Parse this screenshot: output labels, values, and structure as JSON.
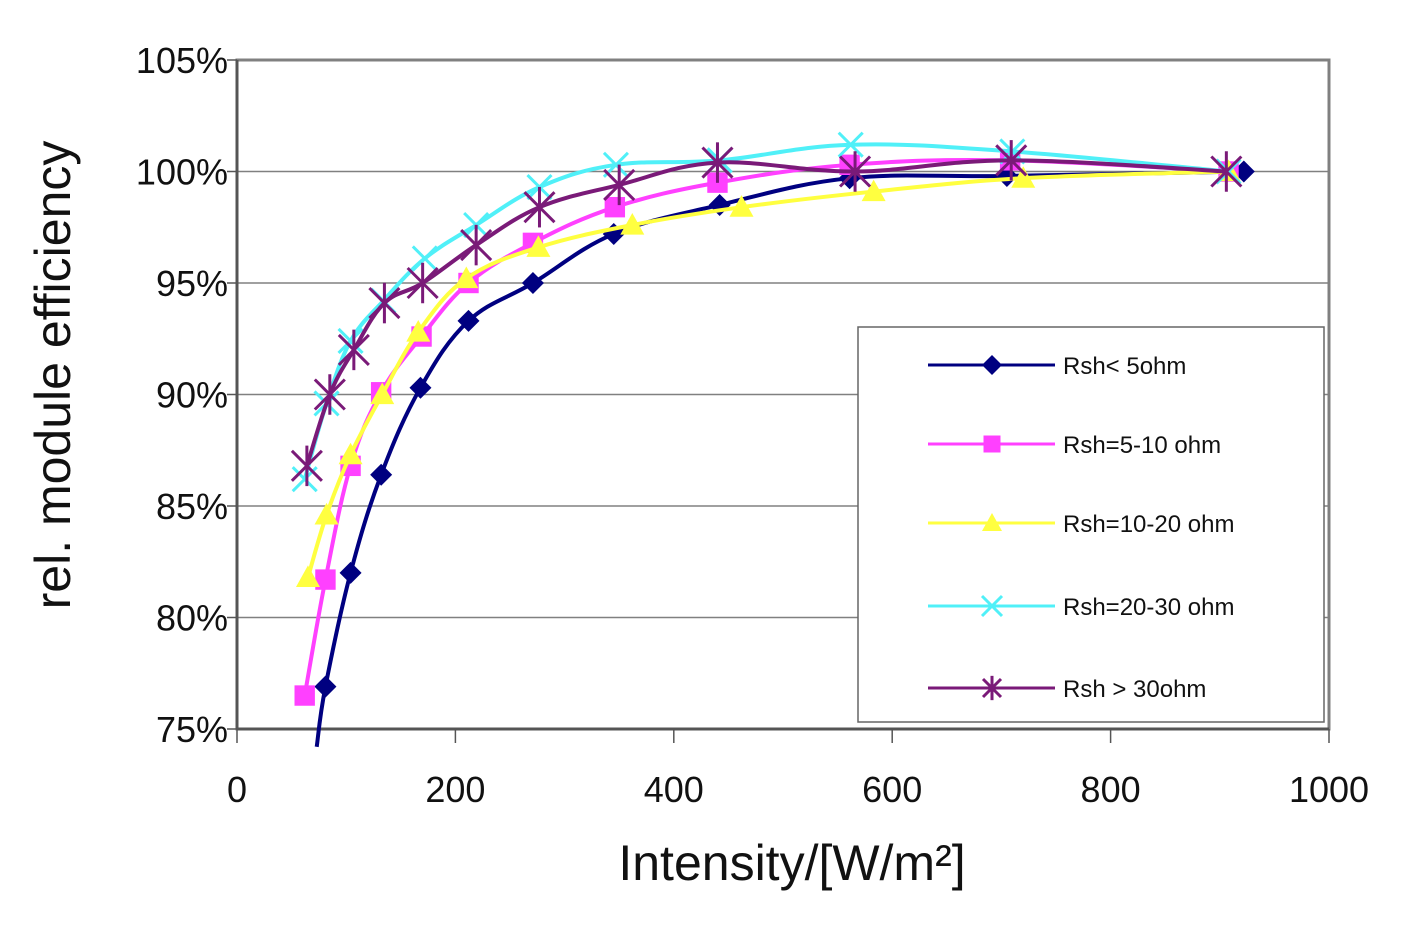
{
  "chart_data": {
    "type": "line",
    "title": "",
    "xlabel": "Intensity/[W/m²]",
    "ylabel": "rel. module efficiency",
    "xlim": [
      0,
      1000
    ],
    "ylim": [
      75,
      105
    ],
    "x_ticks": [
      0,
      200,
      400,
      600,
      800,
      1000
    ],
    "x_tick_labels": [
      "0",
      "200",
      "400",
      "600",
      "800",
      "1000"
    ],
    "y_ticks": [
      75,
      80,
      85,
      90,
      95,
      100,
      105
    ],
    "y_tick_labels": [
      "75%",
      "80%",
      "85%",
      "90%",
      "95%",
      "100%",
      "105%"
    ],
    "grid": "horizontal major gridlines",
    "legend_position": "right, lower-middle inside plot",
    "series": [
      {
        "name": "Rsh< 5ohm",
        "color": "#000080",
        "marker": "diamond",
        "x": [
          81,
          104,
          132,
          168,
          212,
          271,
          345,
          442,
          561,
          705,
          922
        ],
        "y": [
          76.9,
          82.0,
          86.4,
          90.3,
          93.3,
          95.0,
          97.2,
          98.5,
          99.7,
          99.8,
          100.0
        ]
      },
      {
        "name": "Rsh=5-10 ohm",
        "color": "#ff40ff",
        "marker": "square",
        "x": [
          62,
          81,
          104,
          132,
          169,
          212,
          271,
          346,
          440,
          561,
          708,
          908
        ],
        "y": [
          76.5,
          81.7,
          86.8,
          90.1,
          92.6,
          95.0,
          96.8,
          98.4,
          99.5,
          100.3,
          100.5,
          100.0
        ]
      },
      {
        "name": "Rsh=10-20 ohm",
        "color": "#ffff40",
        "marker": "triangle",
        "x": [
          65,
          82,
          104,
          133,
          166,
          210,
          276,
          362,
          462,
          583,
          720,
          908
        ],
        "y": [
          81.8,
          84.6,
          87.3,
          90.0,
          92.8,
          95.2,
          96.6,
          97.6,
          98.4,
          99.1,
          99.7,
          100.0
        ]
      },
      {
        "name": "Rsh=20-30 ohm",
        "color": "#50f0f8",
        "marker": "x",
        "x": [
          62,
          82,
          104,
          134,
          172,
          219,
          277,
          347,
          442,
          562,
          710,
          908
        ],
        "y": [
          86.2,
          89.6,
          92.4,
          94.2,
          96.1,
          97.6,
          99.3,
          100.3,
          100.5,
          101.2,
          100.9,
          100.0
        ]
      },
      {
        "name": "Rsh > 30ohm",
        "color": "#7a1a78",
        "marker": "asterisk",
        "x": [
          64,
          85,
          107,
          135,
          170,
          219,
          277,
          350,
          440,
          566,
          709,
          906
        ],
        "y": [
          86.8,
          90.0,
          92.0,
          94.1,
          95.0,
          96.7,
          98.4,
          99.4,
          100.4,
          100.0,
          100.5,
          100.0
        ]
      }
    ]
  }
}
